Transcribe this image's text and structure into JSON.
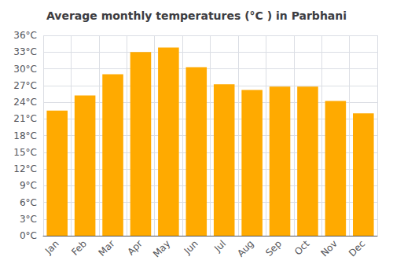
{
  "chart_data": {
    "type": "bar",
    "title": "Average monthly temperatures (°C ) in Parbhani",
    "categories": [
      "Jan",
      "Feb",
      "Mar",
      "Apr",
      "May",
      "Jun",
      "Jul",
      "Aug",
      "Sep",
      "Oct",
      "Nov",
      "Dec"
    ],
    "values": [
      22.5,
      25.2,
      29.0,
      33.0,
      33.8,
      30.3,
      27.2,
      26.2,
      26.8,
      26.8,
      24.2,
      22.0
    ],
    "color": "#FFAA00",
    "ylim": [
      0,
      36
    ],
    "yticks": [
      {
        "value": 0,
        "label": "0°C"
      },
      {
        "value": 3,
        "label": "3°C"
      },
      {
        "value": 6,
        "label": "6°C"
      },
      {
        "value": 9,
        "label": "9°C"
      },
      {
        "value": 12,
        "label": "12°C"
      },
      {
        "value": 15,
        "label": "15°C"
      },
      {
        "value": 18,
        "label": "18°C"
      },
      {
        "value": 21,
        "label": "21°C"
      },
      {
        "value": 24,
        "label": "24°C"
      },
      {
        "value": 27,
        "label": "27°C"
      },
      {
        "value": 30,
        "label": "30°C"
      },
      {
        "value": 33,
        "label": "33°C"
      },
      {
        "value": 36,
        "label": "36°C"
      }
    ],
    "grid": true
  }
}
